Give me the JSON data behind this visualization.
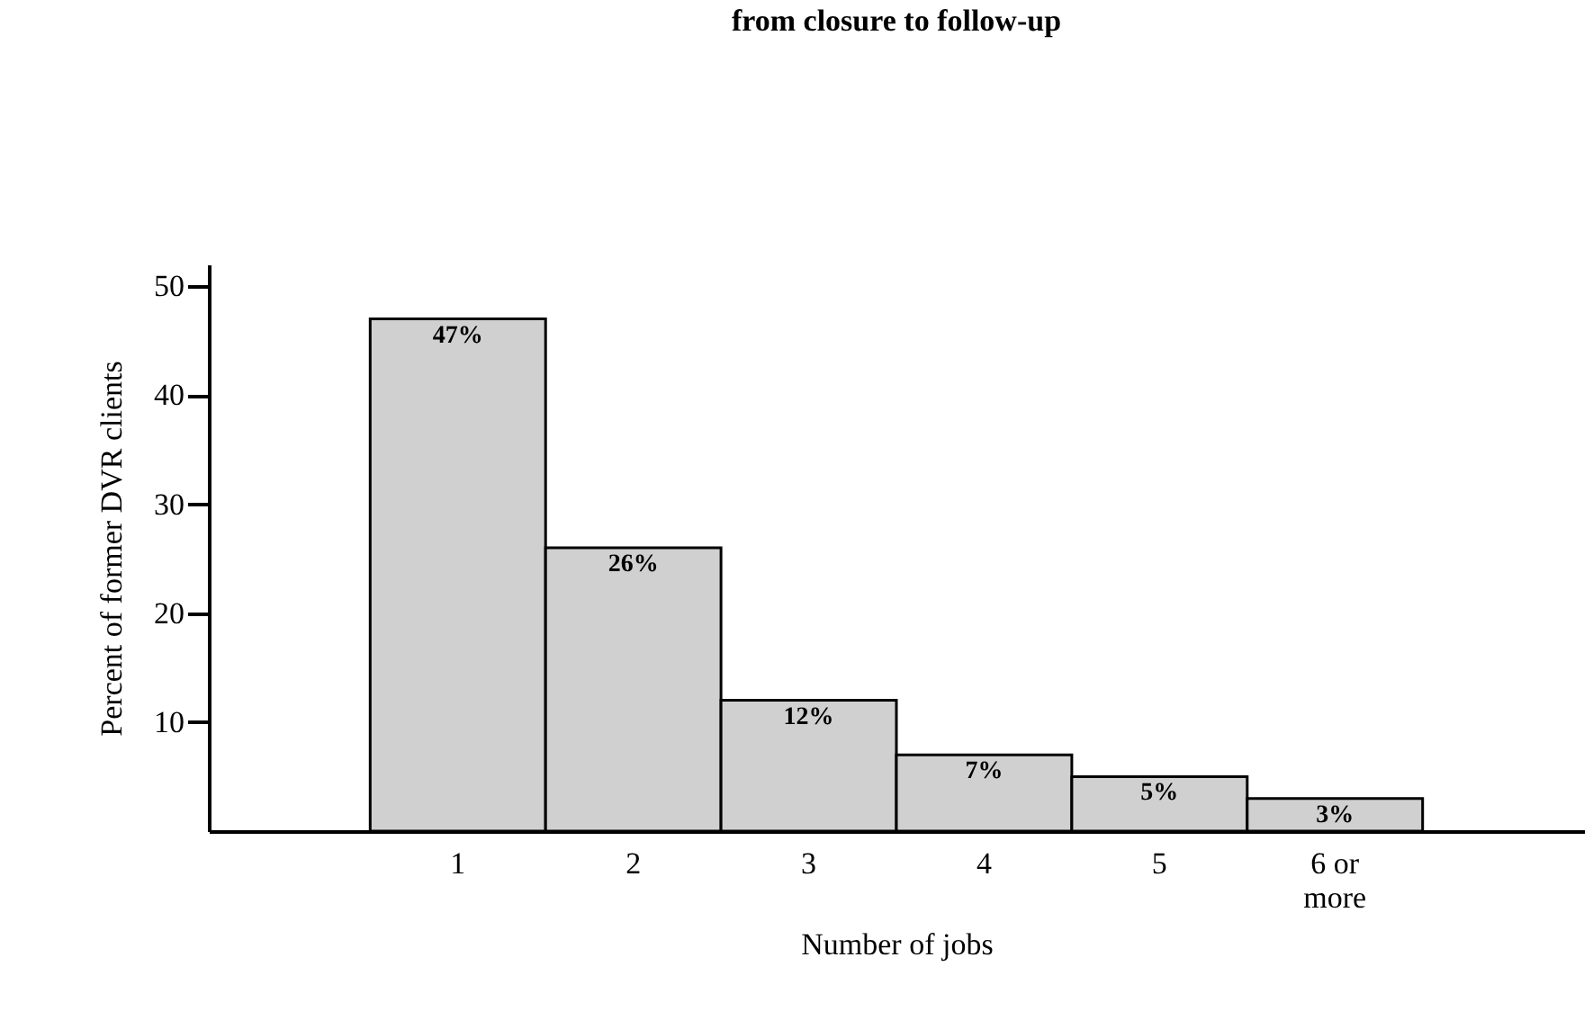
{
  "chart_data": {
    "type": "bar",
    "title": "from closure to follow-up",
    "xlabel": "Number of jobs",
    "ylabel": "Percent of former DVR clients",
    "categories": [
      "1",
      "2",
      "3",
      "4",
      "5",
      "6 or more"
    ],
    "values": [
      47,
      26,
      12,
      7,
      5,
      3
    ],
    "value_labels": [
      "47%",
      "26%",
      "12%",
      "7%",
      "5%",
      "3%"
    ],
    "color": "#d0d0d0",
    "ylim": [
      0,
      52
    ],
    "yticks": [
      10,
      20,
      30,
      40,
      50
    ],
    "grid": false
  }
}
